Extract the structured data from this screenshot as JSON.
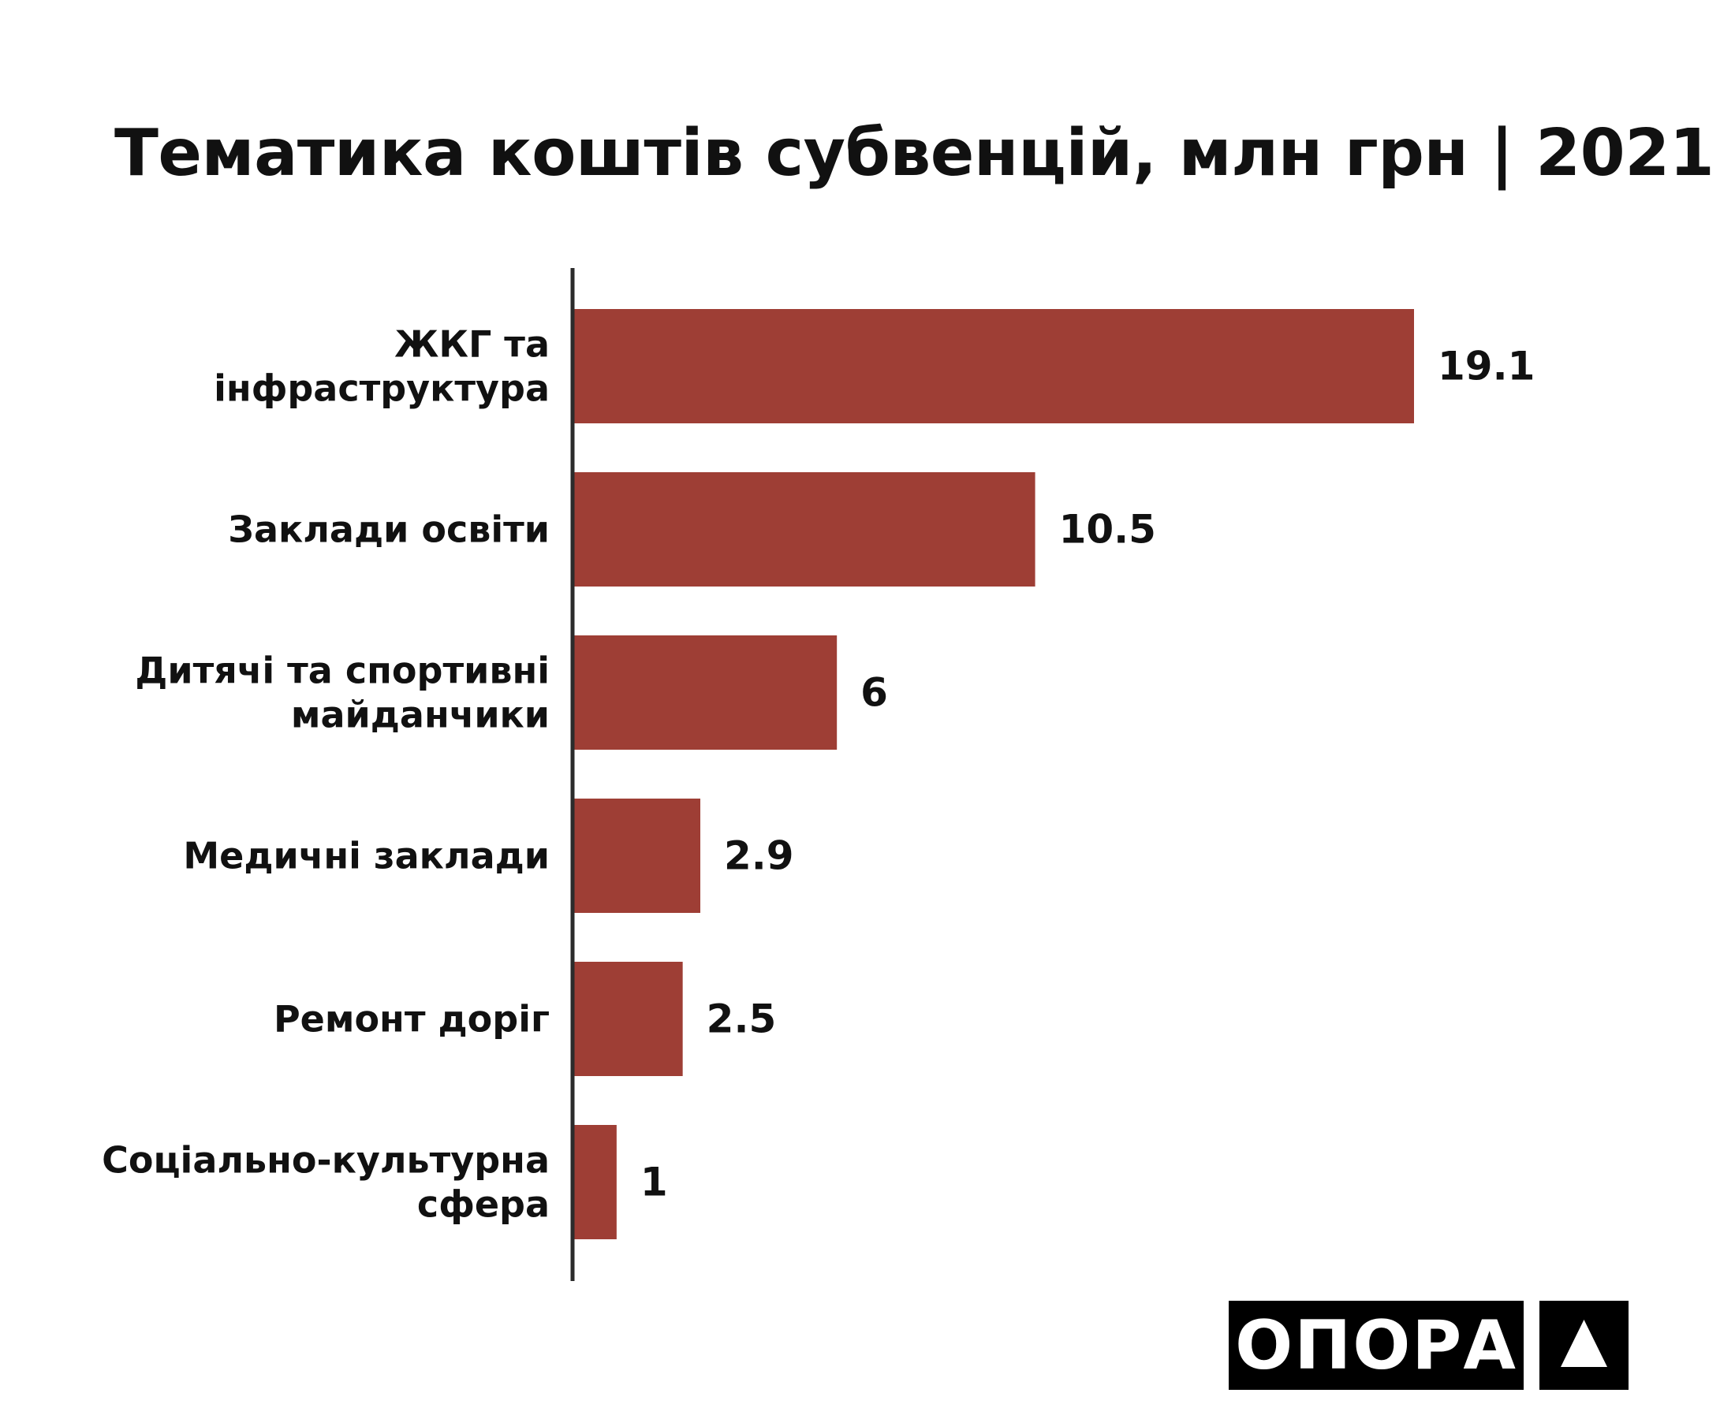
{
  "chart_data": {
    "type": "bar",
    "orientation": "horizontal",
    "title": "Тематика коштів субвенцій, млн грн | 2021",
    "categories": [
      [
        "ЖКГ та",
        "інфраструктура"
      ],
      [
        "Заклади освіти"
      ],
      [
        "Дитячі та спортивні",
        "майданчики"
      ],
      [
        "Медичні заклади"
      ],
      [
        "Ремонт доріг"
      ],
      [
        "Соціально-культурна",
        "сфера"
      ]
    ],
    "values": [
      19.1,
      10.5,
      6,
      2.9,
      2.5,
      1
    ],
    "value_labels": [
      "19.1",
      "10.5",
      "6",
      "2.9",
      "2.5",
      "1"
    ],
    "xlim": [
      0,
      19.1
    ],
    "grid": false,
    "legend": "none",
    "bar_color": "#9e3e35",
    "axis_color": "#2b2b2b"
  },
  "logo": {
    "text": "ОПОРА",
    "icon": "triangle-icon",
    "background": "#000000",
    "foreground": "#ffffff"
  }
}
